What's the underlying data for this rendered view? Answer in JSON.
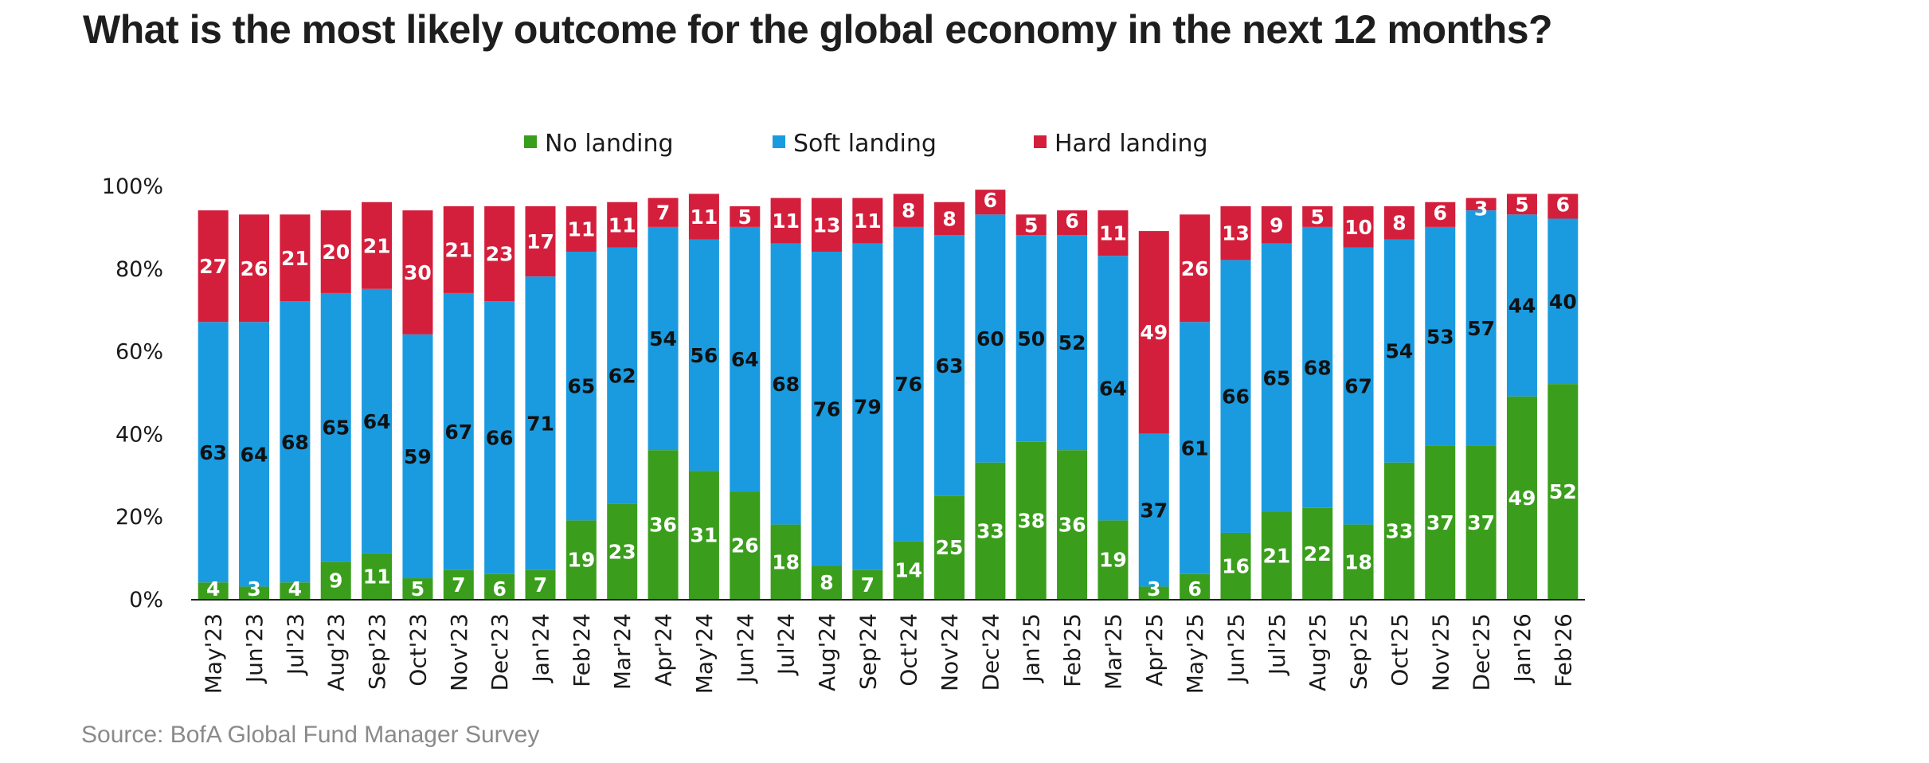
{
  "page": {
    "title": "What is the most likely outcome for the global economy in the next 12 months?",
    "source": "Source: BofA Global Fund Manager Survey"
  },
  "colors": {
    "no_landing": "#3a9e1c",
    "soft_landing": "#1a9be0",
    "hard_landing": "#d31f3c",
    "axis": "#222222",
    "label_dark": "#111111",
    "label_light": "#ffffff"
  },
  "chart_data": {
    "type": "bar",
    "stacked": true,
    "title": "What is the most likely outcome for the global economy in the next 12 months?",
    "xlabel": "",
    "ylabel": "",
    "ylim": [
      0,
      100
    ],
    "yticks": [
      "0%",
      "20%",
      "40%",
      "60%",
      "80%",
      "100%"
    ],
    "legend_position": "top-center",
    "categories": [
      "May'23",
      "Jun'23",
      "Jul'23",
      "Aug'23",
      "Sep'23",
      "Oct'23",
      "Nov'23",
      "Dec'23",
      "Jan'24",
      "Feb'24",
      "Mar'24",
      "Apr'24",
      "May'24",
      "Jun'24",
      "Jul'24",
      "Aug'24",
      "Sep'24",
      "Oct'24",
      "Nov'24",
      "Dec'24",
      "Jan'25",
      "Feb'25",
      "Mar'25",
      "Apr'25",
      "May'25",
      "Jun'25",
      "Jul'25",
      "Aug'25",
      "Sep'25",
      "Oct'25",
      "Nov'25",
      "Dec'25",
      "Jan'26",
      "Feb'26"
    ],
    "series": [
      {
        "name": "No landing",
        "key": "no_landing",
        "values": [
          4,
          3,
          4,
          9,
          11,
          5,
          7,
          6,
          7,
          19,
          23,
          36,
          31,
          26,
          18,
          8,
          7,
          14,
          25,
          33,
          38,
          36,
          19,
          3,
          6,
          16,
          21,
          22,
          18,
          33,
          37,
          37,
          49,
          52
        ],
        "label_color": "light"
      },
      {
        "name": "Soft landing",
        "key": "soft_landing",
        "values": [
          63,
          64,
          68,
          65,
          64,
          59,
          67,
          66,
          71,
          65,
          62,
          54,
          56,
          64,
          68,
          76,
          79,
          76,
          63,
          60,
          50,
          52,
          64,
          37,
          61,
          66,
          65,
          68,
          67,
          54,
          53,
          57,
          44,
          40
        ],
        "label_color": "dark"
      },
      {
        "name": "Hard landing",
        "key": "hard_landing",
        "values": [
          27,
          26,
          21,
          20,
          21,
          30,
          21,
          23,
          17,
          11,
          11,
          7,
          11,
          5,
          11,
          13,
          11,
          8,
          8,
          6,
          5,
          6,
          11,
          49,
          26,
          13,
          9,
          5,
          10,
          8,
          6,
          3,
          5,
          6
        ],
        "label_color": "light"
      }
    ]
  }
}
